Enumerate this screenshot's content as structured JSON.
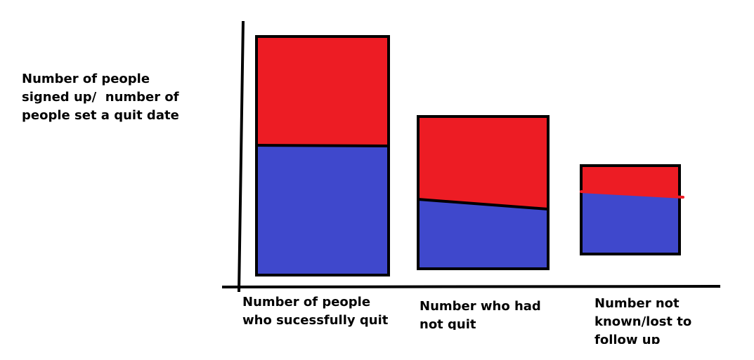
{
  "y_label": "Number of people signed up/  number of people set a quit date",
  "categories": [
    "Number of people who sucessfully quit",
    "Number who had not quit",
    "Number not known/lost to follow up"
  ]
}
